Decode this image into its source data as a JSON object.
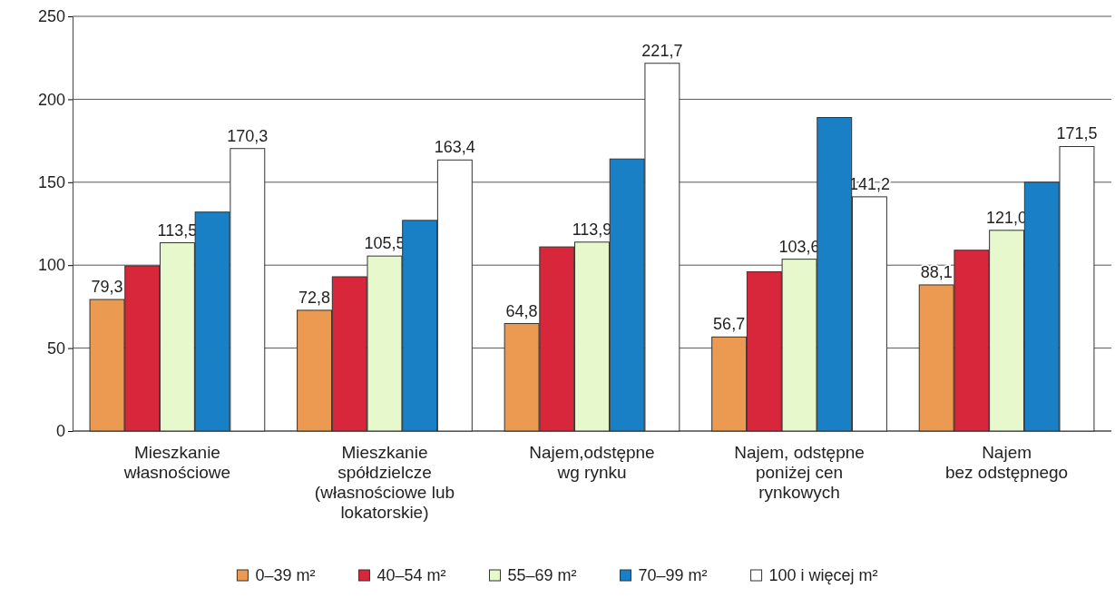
{
  "chart_data": {
    "type": "bar",
    "categories": [
      "Mieszkanie\nwłasnościowe",
      "Mieszkanie\nspółdzielcze\n(własnościowe lub\nlokatorskie)",
      "Najem,odstępne\nwg rynku",
      "Najem, odstępne\nponiżej cen\nrynkowych",
      "Najem\nbez odstępnego"
    ],
    "series": [
      {
        "name": "0–39 m²",
        "color": "#ec9a52",
        "values": [
          79.3,
          72.8,
          64.8,
          56.7,
          88.1
        ],
        "value_labels": [
          "79,3",
          "72,8",
          "64,8",
          "56,7",
          "88,1"
        ]
      },
      {
        "name": "40–54 m²",
        "color": "#d8263a",
        "values": [
          99.5,
          93,
          111,
          96,
          109
        ],
        "value_labels": [
          null,
          null,
          null,
          null,
          null
        ]
      },
      {
        "name": "55–69 m²",
        "color": "#e6f8cc",
        "values": [
          113.5,
          105.5,
          113.9,
          103.6,
          121.0
        ],
        "value_labels": [
          "113,5",
          "105,5",
          "113,9",
          "103,6",
          "121,0"
        ]
      },
      {
        "name": "70–99 m²",
        "color": "#1a80c6",
        "values": [
          132,
          127,
          164,
          189,
          150
        ],
        "value_labels": [
          null,
          null,
          null,
          null,
          null
        ]
      },
      {
        "name": "100 i więcej m²",
        "color": "#ffffff",
        "values": [
          170.3,
          163.4,
          221.7,
          141.2,
          171.5
        ],
        "value_labels": [
          "170,3",
          "163,4",
          "221,7",
          "141,2",
          "171,5"
        ]
      }
    ],
    "ylim": [
      0,
      250
    ],
    "yticks": [
      0,
      50,
      100,
      150,
      200,
      250
    ],
    "grid": "y",
    "legend": "bottom"
  }
}
